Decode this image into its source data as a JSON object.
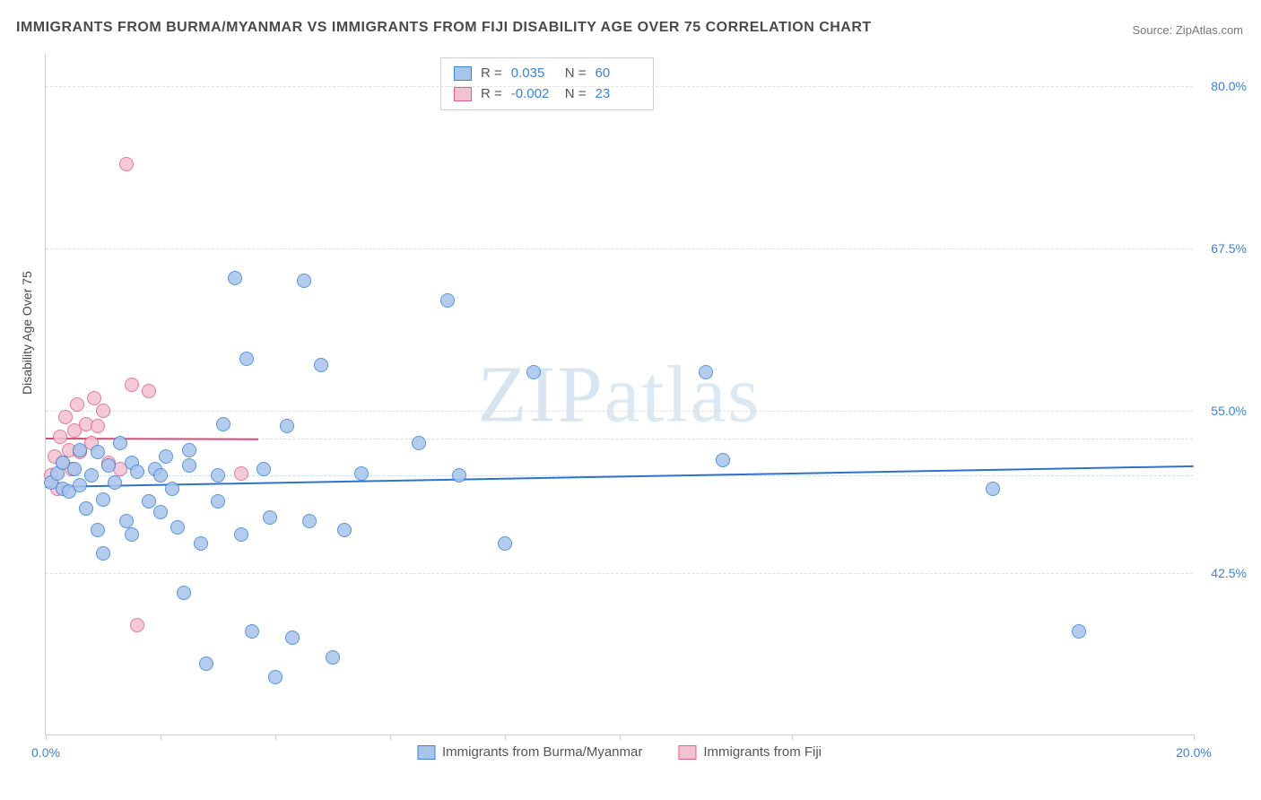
{
  "title": "IMMIGRANTS FROM BURMA/MYANMAR VS IMMIGRANTS FROM FIJI DISABILITY AGE OVER 75 CORRELATION CHART",
  "source": "Source: ZipAtlas.com",
  "ylabel": "Disability Age Over 75",
  "watermark": {
    "bold": "ZIP",
    "thin": "atlas"
  },
  "chart": {
    "type": "scatter",
    "xlim": [
      0,
      20
    ],
    "ylim": [
      30,
      82.5
    ],
    "x_ticks": [
      0,
      2,
      4,
      6,
      8,
      10,
      13,
      20
    ],
    "x_tick_labels": {
      "0": "0.0%",
      "20": "20.0%"
    },
    "y_ticks": [
      42.5,
      55.0,
      67.5,
      80.0
    ],
    "y_tick_labels": [
      "42.5%",
      "55.0%",
      "67.5%",
      "80.0%"
    ],
    "gridline_color": "#e0e0e0",
    "axis_color": "#cccccc",
    "background_color": "#ffffff",
    "tick_label_color": "#3b82d6",
    "label_fontsize": 14,
    "title_fontsize": 16,
    "marker_radius": 8,
    "marker_border_width": 1.2,
    "marker_fill_opacity": 0.25
  },
  "series": [
    {
      "name": "Immigrants from Burma/Myanmar",
      "fill_color": "#a8c5ec",
      "border_color": "#3b82d6",
      "R": "0.035",
      "N": "60",
      "trend": {
        "x1": 0,
        "y1": 49.2,
        "x2": 20,
        "y2": 50.8,
        "color": "#2f73c9",
        "width": 2,
        "dashed_color": "#c9ddf3"
      },
      "points": [
        [
          0.1,
          49.5
        ],
        [
          0.2,
          50.2
        ],
        [
          0.3,
          49.0
        ],
        [
          0.3,
          51.0
        ],
        [
          0.4,
          48.8
        ],
        [
          0.5,
          50.5
        ],
        [
          0.6,
          49.3
        ],
        [
          0.6,
          52.0
        ],
        [
          0.7,
          47.5
        ],
        [
          0.8,
          50.0
        ],
        [
          0.9,
          51.8
        ],
        [
          0.9,
          45.8
        ],
        [
          1.0,
          48.2
        ],
        [
          1.1,
          50.8
        ],
        [
          1.2,
          49.5
        ],
        [
          1.3,
          52.5
        ],
        [
          1.4,
          46.5
        ],
        [
          1.5,
          51.0
        ],
        [
          1.6,
          50.3
        ],
        [
          1.8,
          48.0
        ],
        [
          1.9,
          50.5
        ],
        [
          2.0,
          47.2
        ],
        [
          2.1,
          51.5
        ],
        [
          2.2,
          49.0
        ],
        [
          2.3,
          46.0
        ],
        [
          2.4,
          41.0
        ],
        [
          2.5,
          50.8
        ],
        [
          2.7,
          44.8
        ],
        [
          2.8,
          35.5
        ],
        [
          3.0,
          50.0
        ],
        [
          3.1,
          54.0
        ],
        [
          3.3,
          65.2
        ],
        [
          3.4,
          45.5
        ],
        [
          3.5,
          59.0
        ],
        [
          3.6,
          38.0
        ],
        [
          3.8,
          50.5
        ],
        [
          3.9,
          46.8
        ],
        [
          4.0,
          34.5
        ],
        [
          4.2,
          53.8
        ],
        [
          4.3,
          37.5
        ],
        [
          4.5,
          65.0
        ],
        [
          4.6,
          46.5
        ],
        [
          4.8,
          58.5
        ],
        [
          5.0,
          36.0
        ],
        [
          5.2,
          45.8
        ],
        [
          5.5,
          50.2
        ],
        [
          6.5,
          52.5
        ],
        [
          7.0,
          63.5
        ],
        [
          7.2,
          50.0
        ],
        [
          8.0,
          44.8
        ],
        [
          8.5,
          58.0
        ],
        [
          11.5,
          58.0
        ],
        [
          11.8,
          51.2
        ],
        [
          1.0,
          44.0
        ],
        [
          1.5,
          45.5
        ],
        [
          2.0,
          50.0
        ],
        [
          2.5,
          52.0
        ],
        [
          3.0,
          48.0
        ],
        [
          16.5,
          49.0
        ],
        [
          18.0,
          38.0
        ]
      ]
    },
    {
      "name": "Immigrants from Fiji",
      "fill_color": "#f3c1cf",
      "border_color": "#e26088",
      "R": "-0.002",
      "N": "23",
      "trend": {
        "x1": 0,
        "y1": 52.9,
        "x2": 3.7,
        "y2": 52.85,
        "color": "#d94876",
        "width": 2,
        "dashed_color": "#f5d0db"
      },
      "points": [
        [
          0.1,
          50.0
        ],
        [
          0.15,
          51.5
        ],
        [
          0.2,
          49.0
        ],
        [
          0.25,
          53.0
        ],
        [
          0.3,
          51.0
        ],
        [
          0.35,
          54.5
        ],
        [
          0.4,
          52.0
        ],
        [
          0.45,
          50.5
        ],
        [
          0.5,
          53.5
        ],
        [
          0.55,
          55.5
        ],
        [
          0.6,
          51.8
        ],
        [
          0.7,
          54.0
        ],
        [
          0.8,
          52.5
        ],
        [
          0.85,
          56.0
        ],
        [
          0.9,
          53.8
        ],
        [
          1.0,
          55.0
        ],
        [
          1.1,
          51.0
        ],
        [
          1.3,
          50.5
        ],
        [
          1.4,
          74.0
        ],
        [
          1.5,
          57.0
        ],
        [
          1.8,
          56.5
        ],
        [
          1.6,
          38.5
        ],
        [
          3.4,
          50.2
        ]
      ]
    }
  ],
  "legend_stats": {
    "col1_label": "R =",
    "col2_label": "N ="
  },
  "bottom_legend_labels": [
    "Immigrants from Burma/Myanmar",
    "Immigrants from Fiji"
  ]
}
